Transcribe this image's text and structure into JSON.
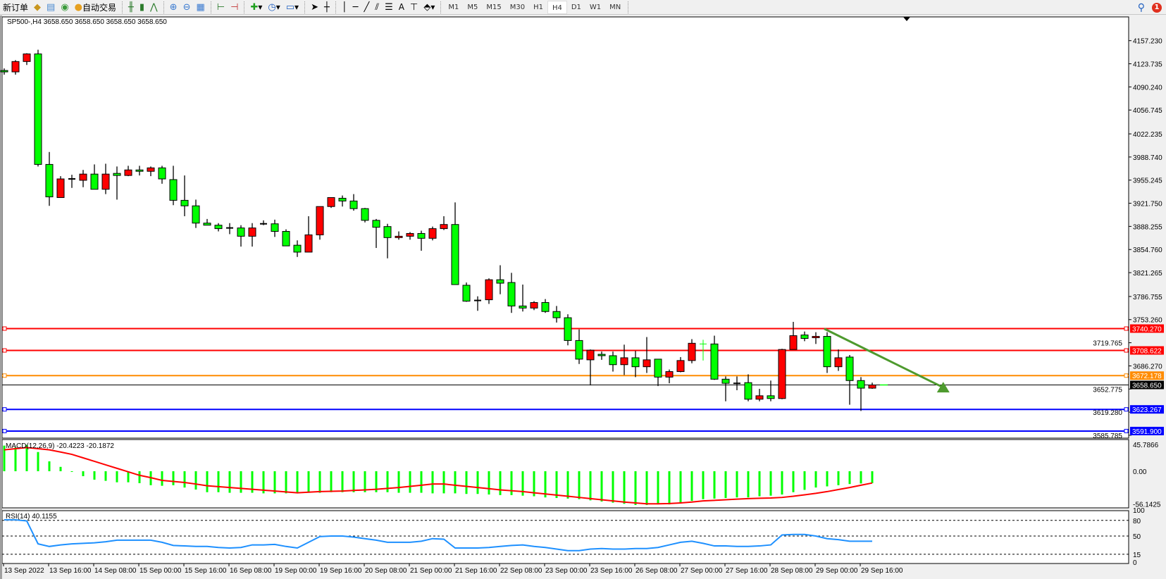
{
  "toolbar": {
    "new_order": "新订单",
    "auto_trade": "自动交易",
    "icons": [
      "bag-icon",
      "data-window-icon",
      "signal-icon",
      "auto-trade-icon",
      "bar-chart-icon",
      "candlestick-icon",
      "line-chart-icon",
      "zoom-in-icon",
      "zoom-out-icon",
      "tile-windows-icon",
      "chart-shift-icon",
      "autoscroll-icon",
      "add-indicator-icon",
      "periods-icon",
      "templates-icon",
      "cursor-icon",
      "crosshair-icon",
      "vertical-line-icon",
      "horizontal-line-icon",
      "trendline-icon",
      "fibonacci-icon",
      "fibo-fan-icon",
      "text-icon",
      "text-label-icon",
      "arrows-icon"
    ],
    "text_tool": "A",
    "timeframes": [
      "M1",
      "M5",
      "M15",
      "M30",
      "H1",
      "H4",
      "D1",
      "W1",
      "MN"
    ],
    "active_timeframe": "H4",
    "notification_count": "1"
  },
  "chart": {
    "header": "SP500-,H4  3658.650 3658.650 3658.650 3658.650",
    "price_ticks": [
      "4157.230",
      "4123.735",
      "4090.240",
      "4056.745",
      "4022.235",
      "3988.740",
      "3955.245",
      "3921.750",
      "3888.255",
      "3854.760",
      "3821.265",
      "3786.755",
      "3753.260",
      "3719.765",
      "3686.270",
      "3652.775",
      "3619.280",
      "3585.785"
    ],
    "levels": [
      {
        "label": "3740.270",
        "price": 3740.27,
        "color": "#ff0000"
      },
      {
        "label": "3708.622",
        "price": 3708.622,
        "color": "#ff0000"
      },
      {
        "label": "3672.178",
        "price": 3672.178,
        "color": "#ff8c00"
      },
      {
        "label": "3623.267",
        "price": 3623.267,
        "color": "#0000ff"
      },
      {
        "label": "3591.900",
        "price": 3591.9,
        "color": "#0000ff"
      }
    ],
    "current_price": {
      "label": "3658.650",
      "price": 3658.65,
      "color": "#000000"
    },
    "time_labels": [
      "13 Sep 2022",
      "13 Sep 16:00",
      "14 Sep 08:00",
      "15 Sep 00:00",
      "15 Sep 16:00",
      "16 Sep 08:00",
      "19 Sep 00:00",
      "19 Sep 16:00",
      "20 Sep 08:00",
      "21 Sep 00:00",
      "21 Sep 16:00",
      "22 Sep 08:00",
      "23 Sep 00:00",
      "23 Sep 16:00",
      "26 Sep 08:00",
      "27 Sep 00:00",
      "27 Sep 16:00",
      "28 Sep 08:00",
      "29 Sep 00:00",
      "29 Sep 16:00"
    ],
    "colors": {
      "bull": "#ff0000",
      "bear": "#00ff00",
      "outline": "#000000",
      "special_doji": "#00ff00",
      "arrow": "#4e9a2e"
    },
    "special_doji_index": 62,
    "arrow": {
      "start": {
        "bar": 72.75,
        "price": 3740
      },
      "end": {
        "bar": 83.3,
        "price": 3655
      }
    }
  },
  "chart_data": [
    {
      "type": "candlestick",
      "timeframe": "H4",
      "symbol": "SP500-",
      "ohlc": [
        [
          4114,
          4117,
          4108,
          4112
        ],
        [
          4112,
          4129,
          4108,
          4127
        ],
        [
          4127,
          4139,
          4122,
          4138
        ],
        [
          4138,
          4144,
          3975,
          3978
        ],
        [
          3978,
          3996,
          3918,
          3931
        ],
        [
          3930,
          3961,
          3930,
          3957
        ],
        [
          3957,
          3963,
          3944,
          3957
        ],
        [
          3955,
          3970,
          3945,
          3964
        ],
        [
          3964,
          3978,
          3942,
          3942
        ],
        [
          3942,
          3979,
          3935,
          3964
        ],
        [
          3965,
          3975,
          3927,
          3962
        ],
        [
          3962,
          3976,
          3961,
          3970
        ],
        [
          3970,
          3976,
          3962,
          3968
        ],
        [
          3968,
          3975,
          3961,
          3973
        ],
        [
          3973,
          3976,
          3950,
          3957
        ],
        [
          3956,
          3976,
          3919,
          3926
        ],
        [
          3926,
          3962,
          3903,
          3918
        ],
        [
          3918,
          3927,
          3886,
          3893
        ],
        [
          3893,
          3899,
          3890,
          3890
        ],
        [
          3890,
          3893,
          3881,
          3885
        ],
        [
          3886,
          3893,
          3877,
          3886
        ],
        [
          3886,
          3890,
          3859,
          3874
        ],
        [
          3874,
          3893,
          3859,
          3886
        ],
        [
          3892,
          3897,
          3890,
          3892
        ],
        [
          3892,
          3898,
          3873,
          3881
        ],
        [
          3881,
          3884,
          3860,
          3860
        ],
        [
          3861,
          3868,
          3844,
          3851
        ],
        [
          3851,
          3903,
          3851,
          3876
        ],
        [
          3876,
          3917,
          3869,
          3917
        ],
        [
          3917,
          3930,
          3915,
          3930
        ],
        [
          3929,
          3933,
          3917,
          3925
        ],
        [
          3925,
          3935,
          3911,
          3914
        ],
        [
          3914,
          3915,
          3894,
          3897
        ],
        [
          3897,
          3899,
          3857,
          3887
        ],
        [
          3888,
          3892,
          3842,
          3872
        ],
        [
          3872,
          3881,
          3869,
          3874
        ],
        [
          3874,
          3880,
          3869,
          3878
        ],
        [
          3878,
          3882,
          3853,
          3871
        ],
        [
          3871,
          3888,
          3868,
          3885
        ],
        [
          3885,
          3903,
          3883,
          3891
        ],
        [
          3891,
          3923,
          3804,
          3804
        ],
        [
          3803,
          3807,
          3779,
          3780
        ],
        [
          3781,
          3787,
          3766,
          3781
        ],
        [
          3782,
          3813,
          3776,
          3811
        ],
        [
          3811,
          3832,
          3790,
          3806
        ],
        [
          3807,
          3821,
          3763,
          3773
        ],
        [
          3773,
          3804,
          3765,
          3770
        ],
        [
          3770,
          3780,
          3767,
          3778
        ],
        [
          3778,
          3783,
          3763,
          3765
        ],
        [
          3765,
          3773,
          3749,
          3756
        ],
        [
          3756,
          3761,
          3716,
          3723
        ],
        [
          3723,
          3739,
          3689,
          3696
        ],
        [
          3695,
          3710,
          3658,
          3709
        ],
        [
          3703,
          3707,
          3695,
          3701
        ],
        [
          3701,
          3707,
          3678,
          3688
        ],
        [
          3688,
          3717,
          3673,
          3698
        ],
        [
          3698,
          3708,
          3670,
          3685
        ],
        [
          3685,
          3728,
          3676,
          3695
        ],
        [
          3696,
          3696,
          3657,
          3670
        ],
        [
          3670,
          3681,
          3661,
          3678
        ],
        [
          3678,
          3699,
          3677,
          3694
        ],
        [
          3694,
          3725,
          3690,
          3719
        ],
        [
          3718,
          3724,
          3694,
          3718
        ],
        [
          3718,
          3730,
          3666,
          3667
        ],
        [
          3667,
          3671,
          3635,
          3661
        ],
        [
          3661,
          3671,
          3651,
          3661
        ],
        [
          3662,
          3674,
          3635,
          3638
        ],
        [
          3638,
          3653,
          3635,
          3643
        ],
        [
          3643,
          3665,
          3635,
          3639
        ],
        [
          3639,
          3711,
          3638,
          3710
        ],
        [
          3710,
          3750,
          3710,
          3730
        ],
        [
          3731,
          3736,
          3722,
          3726
        ],
        [
          3727,
          3735,
          3718,
          3729
        ],
        [
          3729,
          3735,
          3676,
          3685
        ],
        [
          3685,
          3710,
          3679,
          3698
        ],
        [
          3699,
          3702,
          3630,
          3665
        ],
        [
          3665,
          3670,
          3621,
          3654
        ],
        [
          3654,
          3662,
          3653,
          3658.65
        ]
      ]
    },
    {
      "type": "bar+line",
      "title": "MACD(12,26,9) -20.4223 -20.1872",
      "ylim": [
        -56.1425,
        45.7866
      ],
      "ticks": [
        "45.7866",
        "0.00",
        "-56.1425"
      ],
      "main": [
        44,
        41,
        45,
        33,
        17,
        7.5,
        -0.5,
        -8.5,
        -14.5,
        -16.5,
        -19,
        -19,
        -20.5,
        -24,
        -25,
        -24,
        -28,
        -31.5,
        -36,
        -36,
        -37,
        -37,
        -37,
        -38,
        -38,
        -38,
        -38,
        -37,
        -37,
        -36,
        -36,
        -36,
        -36,
        -36,
        -36,
        -37,
        -37,
        -37,
        -38,
        -38,
        -38,
        -39,
        -39,
        -40,
        -41,
        -41,
        -42,
        -43,
        -45,
        -46,
        -47,
        -48,
        -50,
        -52,
        -54,
        -56,
        -58,
        -58,
        -57,
        -57,
        -54,
        -51,
        -48,
        -47,
        -46,
        -45,
        -45,
        -43,
        -42,
        -40,
        -36,
        -32,
        -28,
        -26,
        -24,
        -22,
        -21,
        -20.4223
      ],
      "signal": [
        36.7,
        38.7,
        40.7,
        38.7,
        36.7,
        33,
        29,
        23,
        17,
        11,
        5,
        -1,
        -7,
        -11,
        -15.7,
        -17.5,
        -19.4,
        -22,
        -25,
        -26.5,
        -28,
        -29.5,
        -31,
        -32.5,
        -34,
        -35.5,
        -37,
        -36,
        -35,
        -34.5,
        -34,
        -33,
        -32,
        -31,
        -29.5,
        -28,
        -26,
        -24,
        -22,
        -22,
        -24,
        -26,
        -28,
        -30,
        -32,
        -33.5,
        -35,
        -37,
        -39,
        -41,
        -43,
        -45,
        -47,
        -49,
        -51,
        -53,
        -54.5,
        -56,
        -56,
        -55.5,
        -54.5,
        -53,
        -51,
        -50,
        -49,
        -48,
        -47,
        -46.5,
        -46,
        -45,
        -43,
        -40.5,
        -38,
        -35,
        -31.5,
        -28,
        -24,
        -20.1872
      ],
      "colors": {
        "main": "#00ff00",
        "signal": "#ff0000"
      }
    },
    {
      "type": "line",
      "title": "RSI(14) 40.1155",
      "ylim": [
        0,
        100
      ],
      "ticks": [
        "100",
        "80",
        "50",
        "15",
        "0"
      ],
      "levels": [
        80,
        50,
        15
      ],
      "values": [
        81,
        81,
        79,
        35,
        30,
        33,
        35,
        36,
        37,
        39,
        42,
        42,
        42,
        42,
        38,
        32,
        31,
        30,
        30,
        28,
        27,
        28,
        33,
        33,
        34,
        30,
        27,
        38,
        49,
        50,
        50,
        48,
        45,
        42,
        38,
        38,
        38,
        40,
        45,
        44,
        27,
        27,
        27,
        28,
        30,
        32,
        33,
        30,
        28,
        25,
        22,
        22,
        25,
        26,
        25,
        25,
        26,
        26,
        28,
        33,
        38,
        40,
        36,
        31,
        31,
        30,
        30,
        31,
        33,
        52,
        53,
        53,
        50,
        45,
        43,
        40.1155,
        40.1155,
        40.1155
      ],
      "color": "#1e90ff"
    }
  ]
}
